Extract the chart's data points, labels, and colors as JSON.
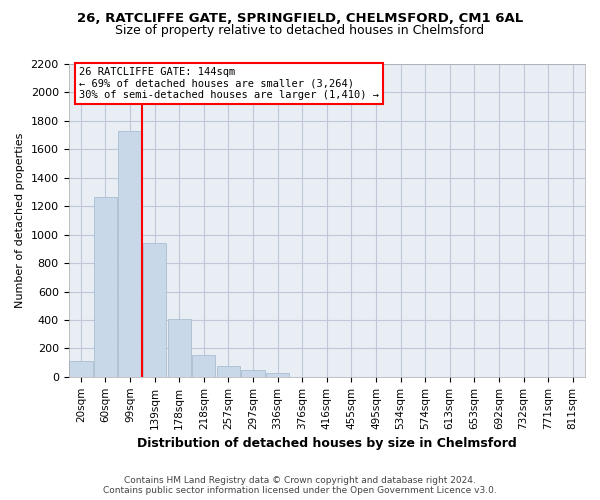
{
  "title": "26, RATCLIFFE GATE, SPRINGFIELD, CHELMSFORD, CM1 6AL",
  "subtitle": "Size of property relative to detached houses in Chelmsford",
  "xlabel": "Distribution of detached houses by size in Chelmsford",
  "ylabel": "Number of detached properties",
  "bar_values": [
    110,
    1265,
    1730,
    940,
    410,
    155,
    75,
    45,
    28,
    0,
    0,
    0,
    0,
    0,
    0,
    0,
    0,
    0,
    0,
    0,
    0
  ],
  "bar_labels": [
    "20sqm",
    "60sqm",
    "99sqm",
    "139sqm",
    "178sqm",
    "218sqm",
    "257sqm",
    "297sqm",
    "336sqm",
    "376sqm",
    "416sqm",
    "455sqm",
    "495sqm",
    "534sqm",
    "574sqm",
    "613sqm",
    "653sqm",
    "692sqm",
    "732sqm",
    "771sqm",
    "811sqm"
  ],
  "bar_color": "#c8d8e8",
  "bar_edge_color": "#a0b8cc",
  "grid_color": "#c0c8d8",
  "background_color": "#e8eef4",
  "red_line_x": 2.5,
  "annotation_line1": "26 RATCLIFFE GATE: 144sqm",
  "annotation_line2": "← 69% of detached houses are smaller (3,264)",
  "annotation_line3": "30% of semi-detached houses are larger (1,410) →",
  "footer_line1": "Contains HM Land Registry data © Crown copyright and database right 2024.",
  "footer_line2": "Contains public sector information licensed under the Open Government Licence v3.0.",
  "ylim": [
    0,
    2200
  ],
  "yticks": [
    0,
    200,
    400,
    600,
    800,
    1000,
    1200,
    1400,
    1600,
    1800,
    2000,
    2200
  ]
}
